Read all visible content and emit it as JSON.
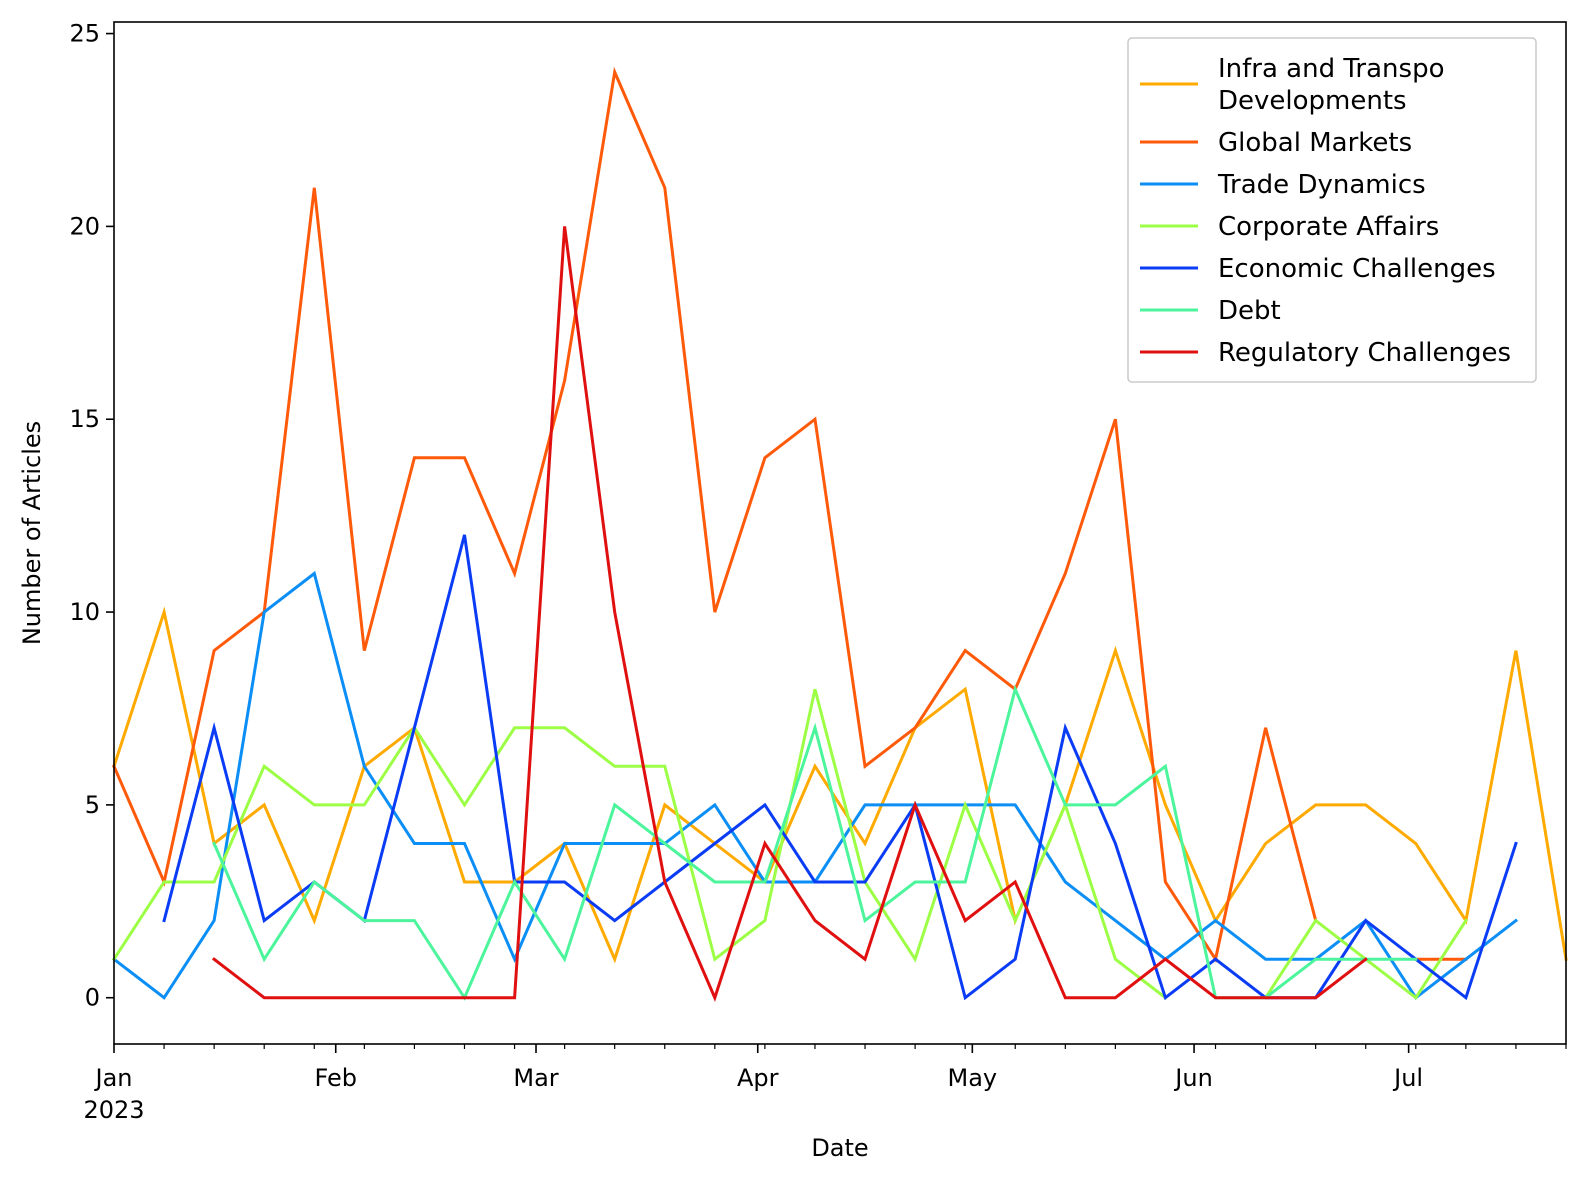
{
  "chart_data": {
    "type": "line",
    "xlabel": "Date",
    "ylabel": "Number of Articles",
    "x_range": [
      "2023-01-01",
      "2023-07-23"
    ],
    "ylim": [
      -1.2,
      25.3
    ],
    "yticks": [
      0,
      5,
      10,
      15,
      20,
      25
    ],
    "xticks_major": [
      {
        "date": "2023-01-01",
        "label": "Jan",
        "sublabel": "2023"
      },
      {
        "date": "2023-02-01",
        "label": "Feb"
      },
      {
        "date": "2023-03-01",
        "label": "Mar"
      },
      {
        "date": "2023-04-01",
        "label": "Apr"
      },
      {
        "date": "2023-05-01",
        "label": "May"
      },
      {
        "date": "2023-06-01",
        "label": "Jun"
      },
      {
        "date": "2023-07-01",
        "label": "Jul"
      }
    ],
    "xticks_minor": [
      "2023-01-08",
      "2023-01-15",
      "2023-01-22",
      "2023-01-29",
      "2023-02-05",
      "2023-02-12",
      "2023-02-19",
      "2023-02-26",
      "2023-03-05",
      "2023-03-12",
      "2023-03-19",
      "2023-03-26",
      "2023-04-02",
      "2023-04-09",
      "2023-04-16",
      "2023-04-23",
      "2023-04-30",
      "2023-05-07",
      "2023-05-14",
      "2023-05-21",
      "2023-05-28",
      "2023-06-04",
      "2023-06-11",
      "2023-06-18",
      "2023-06-25",
      "2023-07-02",
      "2023-07-09",
      "2023-07-16",
      "2023-07-23"
    ],
    "grid": false,
    "legend_position": "top-right",
    "x": [
      "2023-01-01",
      "2023-01-08",
      "2023-01-15",
      "2023-01-22",
      "2023-01-29",
      "2023-02-05",
      "2023-02-12",
      "2023-02-19",
      "2023-02-26",
      "2023-03-05",
      "2023-03-12",
      "2023-03-19",
      "2023-03-26",
      "2023-04-02",
      "2023-04-09",
      "2023-04-16",
      "2023-04-23",
      "2023-04-30",
      "2023-05-07",
      "2023-05-14",
      "2023-05-21",
      "2023-05-28",
      "2023-06-04",
      "2023-06-11",
      "2023-06-18",
      "2023-06-25",
      "2023-07-02",
      "2023-07-09",
      "2023-07-16",
      "2023-07-23"
    ],
    "series": [
      {
        "name": "Infra and Transpo\nDevelopments",
        "color": "#ffaa00",
        "values": [
          6,
          10,
          4,
          5,
          2,
          6,
          7,
          3,
          3,
          4,
          1,
          5,
          4,
          3,
          6,
          4,
          7,
          8,
          2,
          5,
          9,
          5,
          2,
          4,
          5,
          5,
          4,
          2,
          9,
          1
        ]
      },
      {
        "name": "Global Markets",
        "color": "#ff5a0a",
        "values": [
          6,
          3,
          9,
          10,
          21,
          9,
          14,
          14,
          11,
          16,
          24,
          21,
          10,
          14,
          15,
          6,
          7,
          9,
          8,
          11,
          15,
          3,
          1,
          7,
          2,
          null,
          1,
          1,
          null,
          null
        ]
      },
      {
        "name": "Trade Dynamics",
        "color": "#0b8ef5",
        "values": [
          1,
          0,
          2,
          10,
          11,
          6,
          4,
          4,
          1,
          4,
          4,
          4,
          5,
          3,
          3,
          5,
          5,
          5,
          5,
          3,
          2,
          1,
          2,
          1,
          1,
          2,
          0,
          1,
          2,
          null
        ]
      },
      {
        "name": "Corporate Affairs",
        "color": "#9cff45",
        "values": [
          1,
          3,
          3,
          6,
          5,
          5,
          7,
          5,
          7,
          7,
          6,
          6,
          1,
          2,
          8,
          3,
          1,
          5,
          2,
          5,
          1,
          0,
          null,
          0,
          2,
          1,
          0,
          2,
          null,
          null
        ]
      },
      {
        "name": "Economic Challenges",
        "color": "#0a3cf5",
        "values": [
          null,
          2,
          7,
          2,
          3,
          2,
          7,
          12,
          3,
          3,
          2,
          3,
          4,
          5,
          3,
          3,
          5,
          0,
          1,
          7,
          4,
          0,
          1,
          0,
          0,
          2,
          1,
          0,
          4,
          null
        ]
      },
      {
        "name": "Debt",
        "color": "#4cf59c",
        "values": [
          null,
          null,
          4,
          1,
          3,
          2,
          2,
          0,
          3,
          1,
          5,
          4,
          3,
          3,
          7,
          2,
          3,
          3,
          8,
          5,
          5,
          6,
          0,
          0,
          1,
          1,
          1,
          null,
          null,
          null
        ]
      },
      {
        "name": "Regulatory Challenges",
        "color": "#e01010",
        "values": [
          null,
          null,
          1,
          0,
          0,
          0,
          0,
          0,
          0,
          20,
          10,
          3,
          0,
          4,
          2,
          1,
          5,
          2,
          3,
          0,
          0,
          1,
          0,
          0,
          0,
          1,
          null,
          null,
          null,
          null
        ]
      }
    ]
  }
}
